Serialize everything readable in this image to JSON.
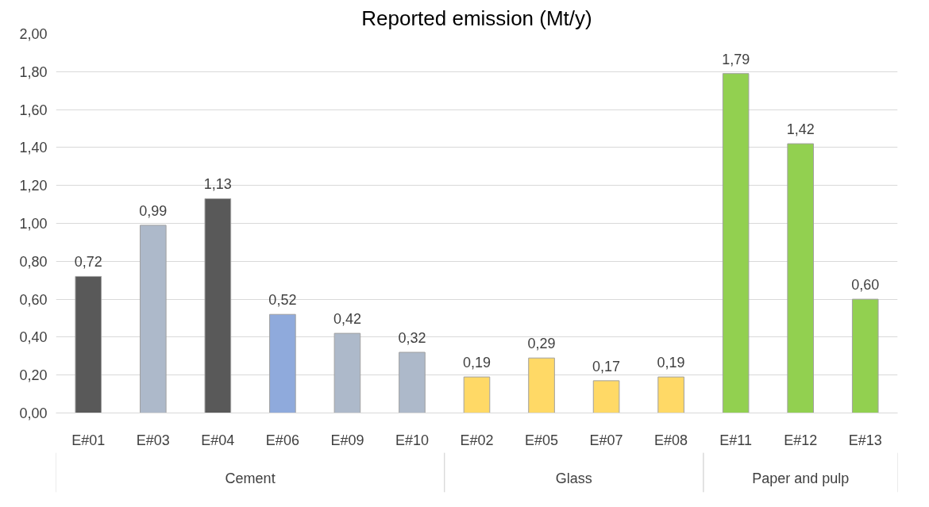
{
  "chart_data": {
    "type": "bar",
    "title": "Reported emission (Mt/y)",
    "categories": [
      "E#01",
      "E#03",
      "E#04",
      "E#06",
      "E#09",
      "E#10",
      "E#02",
      "E#05",
      "E#07",
      "E#08",
      "E#11",
      "E#12",
      "E#13"
    ],
    "values": [
      0.72,
      0.99,
      1.13,
      0.52,
      0.42,
      0.32,
      0.19,
      0.29,
      0.17,
      0.19,
      1.79,
      1.42,
      0.6
    ],
    "colors": [
      "#595959",
      "#adb9ca",
      "#595959",
      "#8faadc",
      "#adb9ca",
      "#adb9ca",
      "#ffd966",
      "#ffd966",
      "#ffd966",
      "#ffd966",
      "#92d050",
      "#92d050",
      "#92d050"
    ],
    "value_labels": [
      "0,72",
      "0,99",
      "1,13",
      "0,52",
      "0,42",
      "0,32",
      "0,19",
      "0,29",
      "0,17",
      "0,19",
      "1,79",
      "1,42",
      "0,60"
    ],
    "ylim": [
      0,
      2
    ],
    "yticks": [
      {
        "value": 0,
        "label": "0,00"
      },
      {
        "value": 0.2,
        "label": "0,20"
      },
      {
        "value": 0.4,
        "label": "0,40"
      },
      {
        "value": 0.6,
        "label": "0,60"
      },
      {
        "value": 0.8,
        "label": "0,80"
      },
      {
        "value": 1.0,
        "label": "1,00"
      },
      {
        "value": 1.2,
        "label": "1,20"
      },
      {
        "value": 1.4,
        "label": "1,40"
      },
      {
        "value": 1.6,
        "label": "1,60"
      },
      {
        "value": 1.8,
        "label": "1,80"
      },
      {
        "value": 2.0,
        "label": "2,00"
      }
    ],
    "grid": "y",
    "annotations": [
      "Cement",
      "Glass",
      "Paper and pulp"
    ]
  }
}
